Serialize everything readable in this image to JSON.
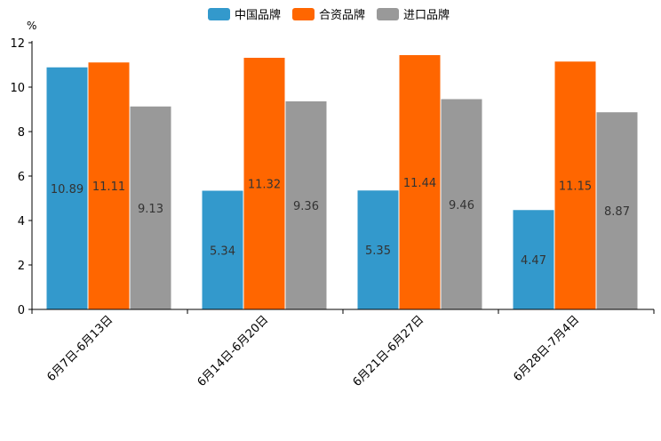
{
  "chart_data": {
    "type": "bar",
    "title": "",
    "xlabel": "",
    "ylabel": "%",
    "ylim": [
      0,
      12
    ],
    "yticks": [
      0,
      2,
      4,
      6,
      8,
      10,
      12
    ],
    "grid": false,
    "legend_position": "top-center",
    "categories": [
      "6月7日-6月13日",
      "6月14日-6月20日",
      "6月21日-6月27日",
      "6月28日-7月4日"
    ],
    "series": [
      {
        "name": "中国品牌",
        "color": "#3399cc",
        "values": [
          10.89,
          5.34,
          5.35,
          4.47
        ]
      },
      {
        "name": "合资品牌",
        "color": "#ff6600",
        "values": [
          11.11,
          11.32,
          11.44,
          11.15
        ]
      },
      {
        "name": "进口品牌",
        "color": "#999999",
        "values": [
          9.13,
          9.36,
          9.46,
          8.87
        ]
      }
    ]
  }
}
